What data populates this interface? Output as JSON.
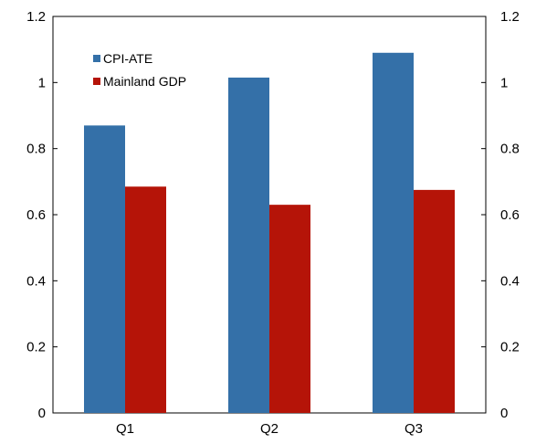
{
  "chart_data": {
    "type": "bar",
    "title": "",
    "xlabel": "",
    "ylabel": "",
    "categories": [
      "Q1",
      "Q2",
      "Q3"
    ],
    "series": [
      {
        "name": "CPI-ATE",
        "color": "#3470a8",
        "values": [
          0.87,
          1.015,
          1.09
        ]
      },
      {
        "name": "Mainland GDP",
        "color": "#b51408",
        "values": [
          0.685,
          0.63,
          0.675
        ]
      }
    ],
    "ylim": [
      0,
      1.2
    ],
    "yticks": [
      "0",
      "0.2",
      "0.4",
      "0.6",
      "0.8",
      "1",
      "1.2"
    ],
    "secondary_yaxis": true,
    "grid": false,
    "legend_position": "top-left"
  }
}
